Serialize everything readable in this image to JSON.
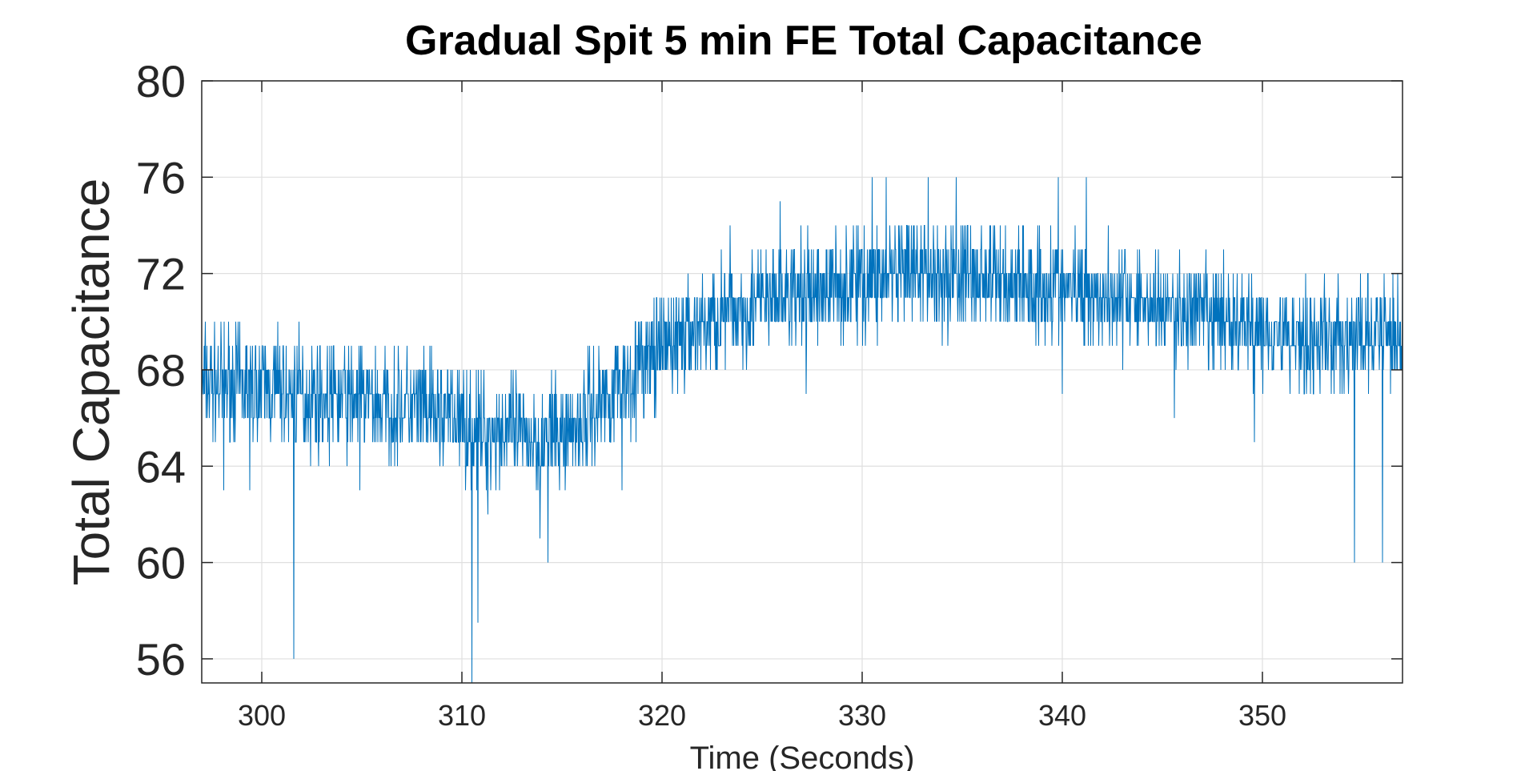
{
  "chart_data": {
    "type": "line",
    "title": "Gradual Spit 5 min FE Total Capacitance",
    "xlabel": "Time (Seconds)",
    "ylabel": "Total Capacitance",
    "xlim": [
      297,
      357
    ],
    "ylim": [
      55,
      80
    ],
    "x_ticks": [
      "300",
      "310",
      "320",
      "330",
      "340",
      "350"
    ],
    "y_ticks": [
      "56",
      "60",
      "64",
      "68",
      "72",
      "76",
      "80"
    ],
    "grid": true,
    "legend": "none",
    "series_color": "#0072BD",
    "series": [
      {
        "x_start": 297,
        "x_end": 357,
        "trend": [
          [
            297,
            67.5
          ],
          [
            300,
            67.3
          ],
          [
            303,
            66.9
          ],
          [
            306,
            66.6
          ],
          [
            309,
            66.2
          ],
          [
            311,
            65.6
          ],
          [
            313,
            65.3
          ],
          [
            315,
            65.2
          ],
          [
            317,
            66.8
          ],
          [
            319,
            68.2
          ],
          [
            321,
            69.5
          ],
          [
            323,
            70.3
          ],
          [
            325,
            70.8
          ],
          [
            327,
            71.2
          ],
          [
            329,
            71.6
          ],
          [
            331,
            71.9
          ],
          [
            333,
            72.0
          ],
          [
            335,
            71.9
          ],
          [
            337,
            71.7
          ],
          [
            339,
            71.5
          ],
          [
            341,
            71.3
          ],
          [
            343,
            71.0
          ],
          [
            345,
            70.6
          ],
          [
            347,
            70.2
          ],
          [
            349,
            69.9
          ],
          [
            351,
            69.5
          ],
          [
            353,
            69.3
          ],
          [
            355,
            69.2
          ],
          [
            357,
            69.6
          ]
        ],
        "spread": 2.0,
        "outliers": [
          [
            298.1,
            63
          ],
          [
            299.4,
            63
          ],
          [
            301.6,
            56
          ],
          [
            304.9,
            63
          ],
          [
            310.5,
            55
          ],
          [
            310.8,
            57.5
          ],
          [
            311.3,
            62
          ],
          [
            313.9,
            61
          ],
          [
            314.3,
            60
          ],
          [
            318.0,
            63
          ],
          [
            323.4,
            74
          ],
          [
            325.9,
            75
          ],
          [
            327.2,
            67
          ],
          [
            330.5,
            76
          ],
          [
            331.2,
            76
          ],
          [
            333.3,
            76
          ],
          [
            334.7,
            76
          ],
          [
            339.8,
            76
          ],
          [
            340.0,
            67
          ],
          [
            341.2,
            76
          ],
          [
            345.6,
            66
          ],
          [
            349.6,
            65
          ],
          [
            354.6,
            60
          ],
          [
            356.0,
            60
          ],
          [
            357.0,
            73
          ]
        ]
      }
    ]
  }
}
